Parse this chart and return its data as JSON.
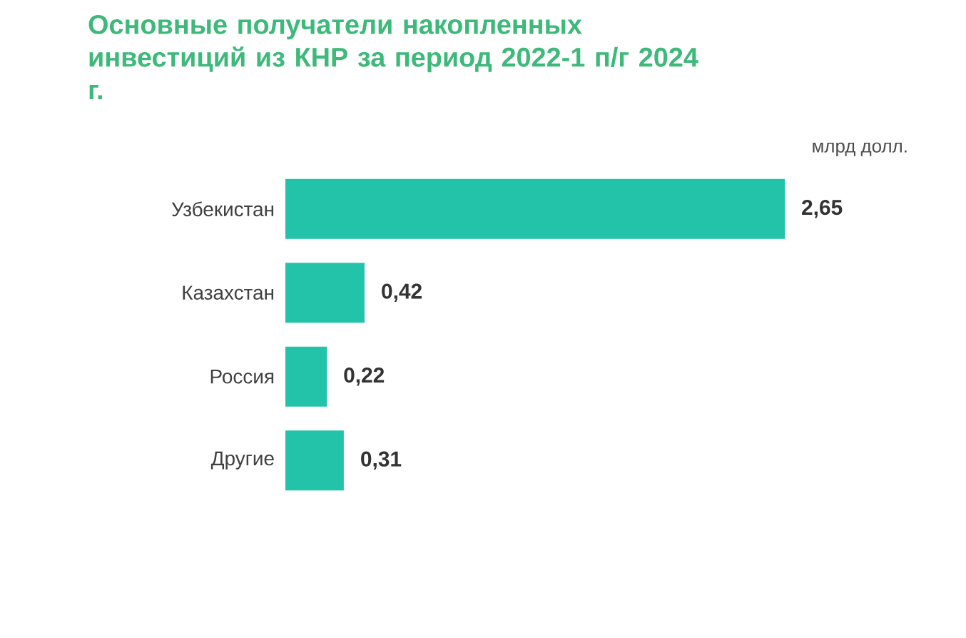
{
  "chart_data": {
    "type": "bar",
    "orientation": "horizontal",
    "title": "Основные получатели накопленных инвестиций из КНР за период 2022-1 п/г 2024 г.",
    "annotations": [
      "млрд долл."
    ],
    "categories": [
      "Узбекистан",
      "Казахстан",
      "Россия",
      "Другие"
    ],
    "values": [
      2.65,
      0.42,
      0.22,
      0.31
    ],
    "value_labels": [
      "2,65",
      "0,42",
      "0,22",
      "0,31"
    ],
    "color": "#22c3a8"
  }
}
